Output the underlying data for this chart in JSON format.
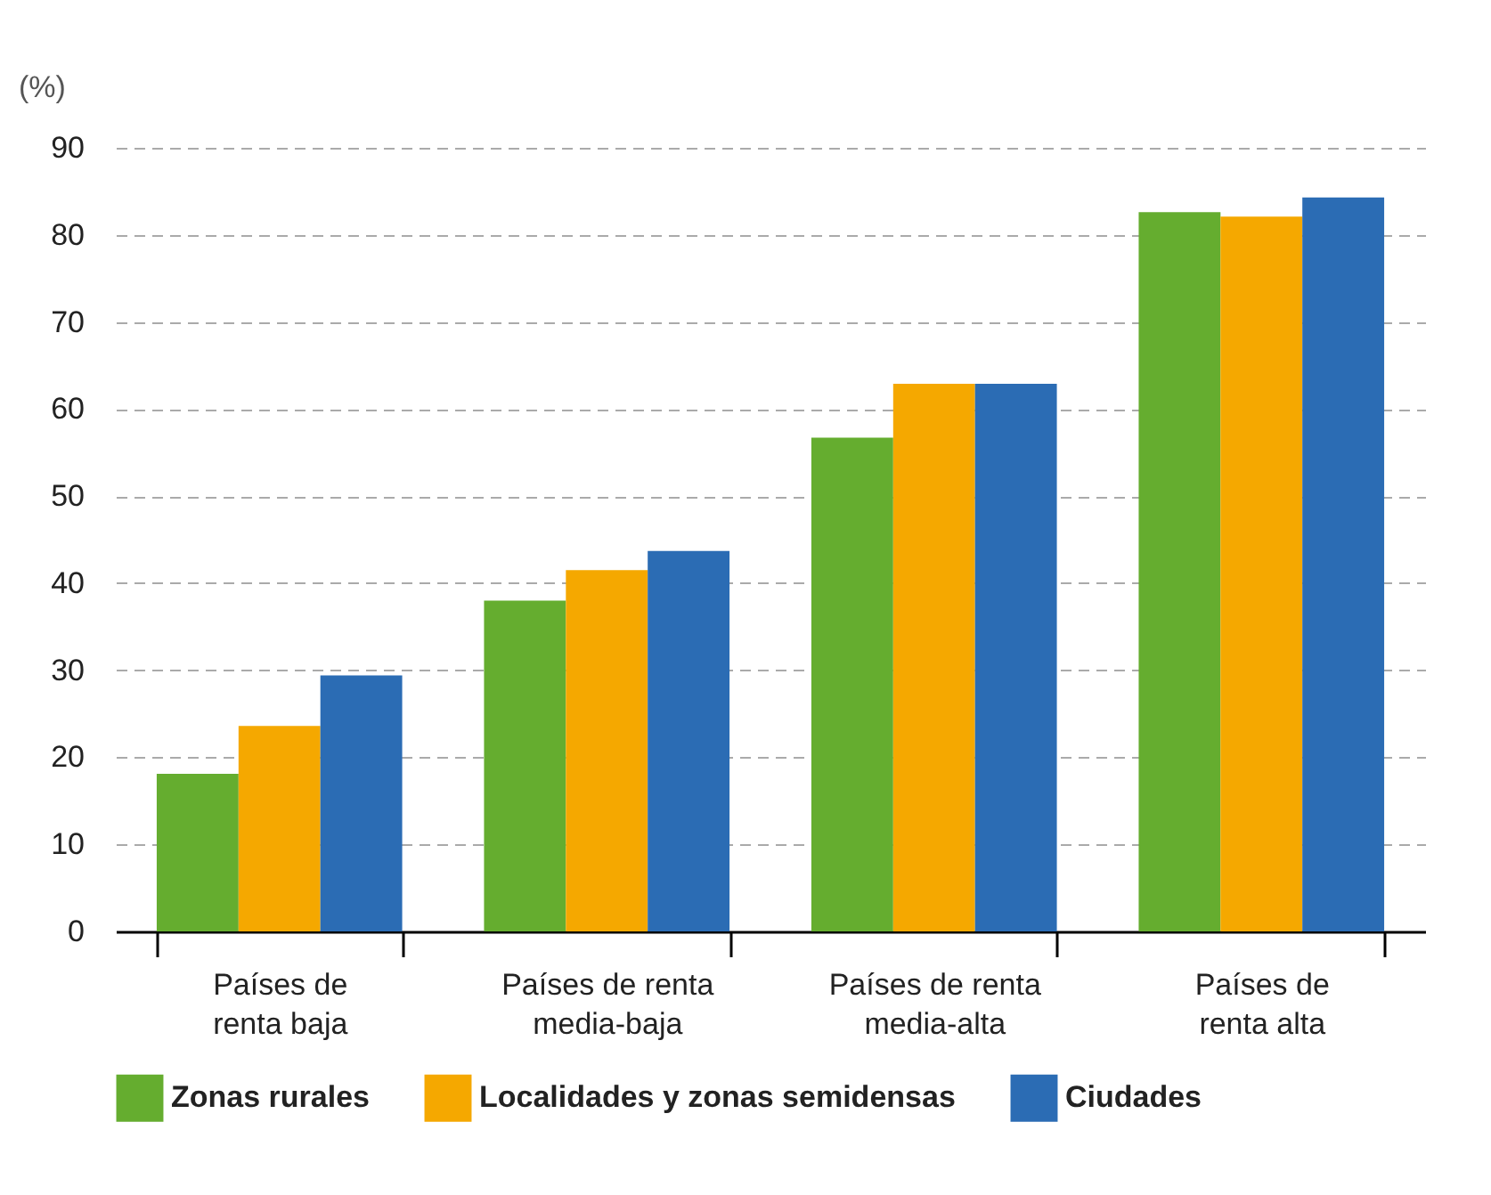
{
  "chart_data": {
    "type": "bar",
    "ylabel": "(%)",
    "categories": [
      "Países de\nrenta baja",
      "Países de renta\nmedia-baja",
      "Países de renta\nmedia-alta",
      "Países de\nrenta alta"
    ],
    "series": [
      {
        "name": "Zonas rurales",
        "color": "#65ad2f",
        "values": [
          18.1,
          38.0,
          56.7,
          82.6
        ]
      },
      {
        "name": "Localidades y zonas semidensas",
        "color": "#f5a800",
        "values": [
          23.6,
          41.5,
          62.9,
          82.1
        ]
      },
      {
        "name": "Ciudades",
        "color": "#2b6cb4",
        "values": [
          29.4,
          43.7,
          62.9,
          84.3
        ]
      }
    ],
    "ylim": [
      0,
      90
    ],
    "yticks": [
      0,
      10,
      20,
      30,
      40,
      50,
      60,
      70,
      80,
      90
    ],
    "grid": "y",
    "legend": "bottom"
  }
}
